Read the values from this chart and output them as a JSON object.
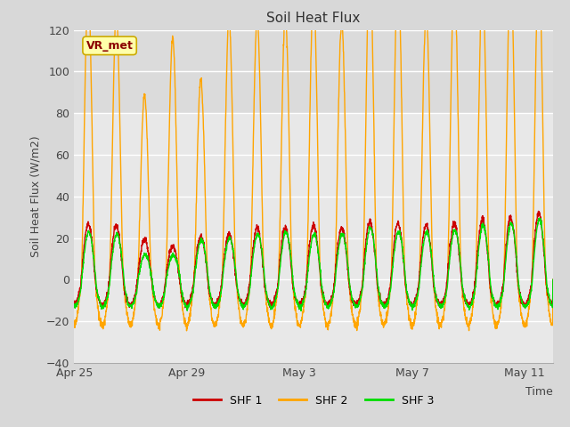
{
  "title": "Soil Heat Flux",
  "ylabel": "Soil Heat Flux (W/m2)",
  "xlabel": "Time",
  "ylim": [
    -40,
    120
  ],
  "yticks": [
    -40,
    -20,
    0,
    20,
    40,
    60,
    80,
    100,
    120
  ],
  "fig_bg_color": "#d8d8d8",
  "plot_bg_color": "#e8e8e8",
  "upper_band_color": "#d0d0d0",
  "shf1_color": "#cc0000",
  "shf2_color": "#ffa500",
  "shf3_color": "#00dd00",
  "legend_label1": "SHF 1",
  "legend_label2": "SHF 2",
  "legend_label3": "SHF 3",
  "watermark_text": "VR_met",
  "watermark_color": "#8b0000",
  "watermark_bg": "#ffffaa",
  "num_days": 17,
  "x_tick_labels": [
    "Apr 25",
    "Apr 29",
    "May 3",
    "May 7",
    "May 11"
  ],
  "x_tick_positions": [
    0,
    4,
    8,
    12,
    16
  ],
  "shf2_amps": [
    98,
    90,
    63,
    82,
    68,
    88,
    89,
    89,
    97,
    87,
    108,
    105,
    90,
    101,
    100,
    104,
    106
  ],
  "shf1_amps": [
    27,
    26,
    19,
    16,
    21,
    22,
    25,
    25,
    26,
    25,
    28,
    27,
    26,
    27,
    29,
    30,
    32
  ],
  "shf3_amps": [
    23,
    22,
    12,
    12,
    19,
    20,
    22,
    23,
    22,
    22,
    25,
    23,
    23,
    24,
    26,
    27,
    29
  ]
}
